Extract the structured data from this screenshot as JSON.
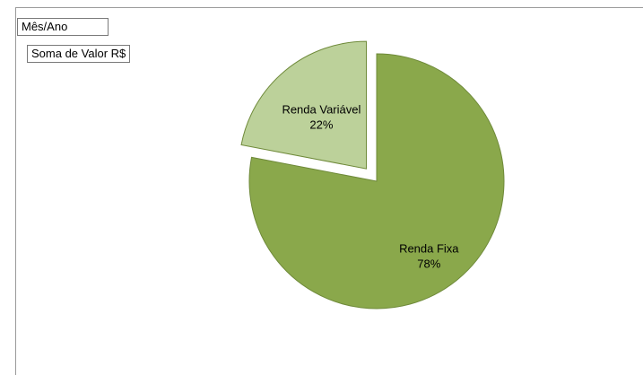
{
  "pivot_fields": {
    "column_field": "Mês/Ano",
    "data_field": "Soma de Valor R$"
  },
  "chart_data": {
    "type": "pie",
    "title": "",
    "slices": [
      {
        "name": "Renda Fixa",
        "value": 78,
        "label": "78%",
        "color": "#8aa84b",
        "exploded": false
      },
      {
        "name": "Renda Variável",
        "value": 22,
        "label": "22%",
        "color": "#bcd19a",
        "exploded": true
      }
    ],
    "legend": "none",
    "data_labels": "inside, category name and percentage"
  }
}
